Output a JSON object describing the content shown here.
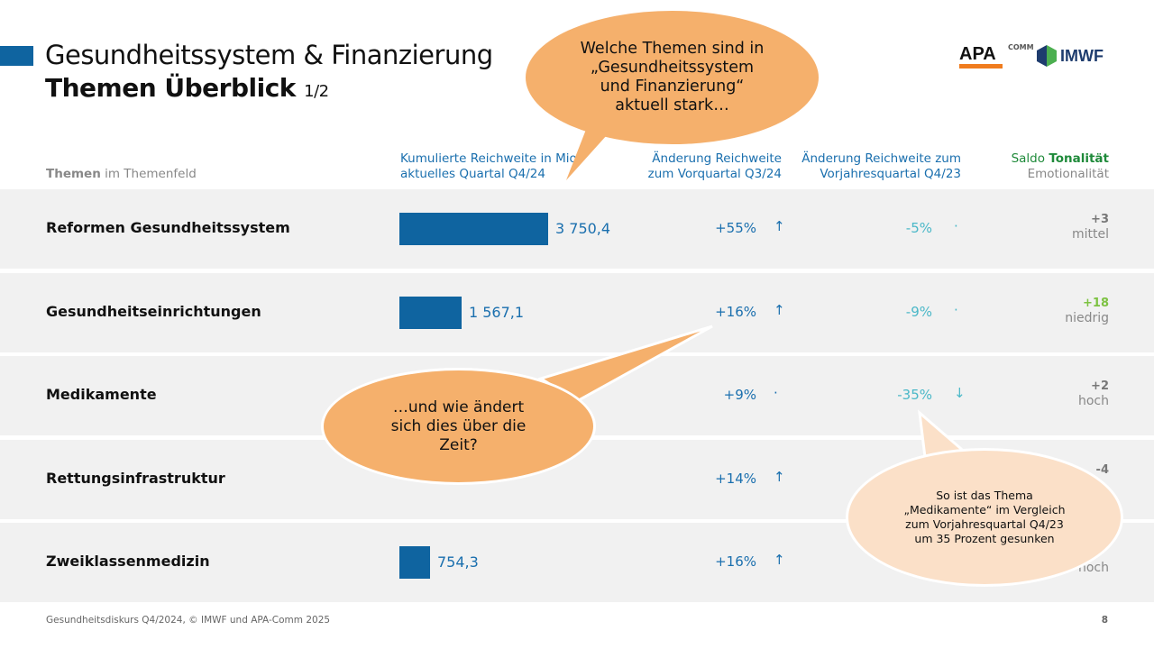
{
  "header": {
    "title": "Gesundheitssystem & Finanzierung",
    "subtitle": "Themen Überblick",
    "page_fraction": "1/2"
  },
  "logos": {
    "apa": "APA",
    "apa_sup": "COMM",
    "imwf": "IMWF"
  },
  "columns": {
    "themen_bold": "Themen",
    "themen_rest": " im Themenfeld",
    "reichweite_1": "Kumulierte Reichweite in Mio",
    "reichweite_2": "aktuelles Quartal Q4/24",
    "vq_1": "Änderung Reichweite",
    "vq_2": "zum Vorquartal Q3/24",
    "vj_1": "Änderung Reichweite zum",
    "vj_2": "Vorjahresquartal Q4/23",
    "saldo": "Saldo ",
    "tonalitaet": "Tonalität",
    "emotionalitaet": "Emotionalität"
  },
  "rows": [
    {
      "name": "Reformen Gesundheitssystem",
      "reach": "3 750,4",
      "reach_value": 3750.4,
      "vq": "+55%",
      "vq_arrow": "↑",
      "vj": "-5%",
      "vj_arrow": "·",
      "saldo": "+3",
      "saldo_color": "#777777",
      "emotion": "mittel"
    },
    {
      "name": "Gesundheitseinrichtungen",
      "reach": "1 567,1",
      "reach_value": 1567.1,
      "vq": "+16%",
      "vq_arrow": "↑",
      "vj": "-9%",
      "vj_arrow": "·",
      "saldo": "+18",
      "saldo_color": "#7dc242",
      "emotion": "niedrig"
    },
    {
      "name": "Medikamente",
      "reach": "",
      "reach_value": 0,
      "vq": "+9%",
      "vq_arrow": "·",
      "vj": "-35%",
      "vj_arrow": "↓",
      "saldo": "+2",
      "saldo_color": "#777777",
      "emotion": "hoch"
    },
    {
      "name": "Rettungsinfrastruktur",
      "reach": "",
      "reach_value": 0,
      "vq": "+14%",
      "vq_arrow": "↑",
      "vj": "",
      "vj_arrow": "",
      "saldo": "-4",
      "saldo_color": "#777777",
      "emotion": ""
    },
    {
      "name": "Zweiklassenmedizin",
      "reach": "754,3",
      "reach_value": 754.3,
      "vq": "+16%",
      "vq_arrow": "↑",
      "vj": "",
      "vj_arrow": "",
      "saldo": "",
      "saldo_color": "#c0504d",
      "emotion": "hoch"
    }
  ],
  "bubbles": {
    "top": "Welche Themen sind in „Gesundheitssystem und Finanzierung“ aktuell stark…",
    "middle": "…und wie ändert sich dies über die Zeit?",
    "right": "So ist das Thema „Medikamente“ im Vergleich zum Vorjahresquartal Q4/23 um 35 Prozent gesunken"
  },
  "footer": {
    "source": "Gesundheitsdiskurs Q4/2024, © IMWF und APA-Comm 2025",
    "page": "8"
  }
}
